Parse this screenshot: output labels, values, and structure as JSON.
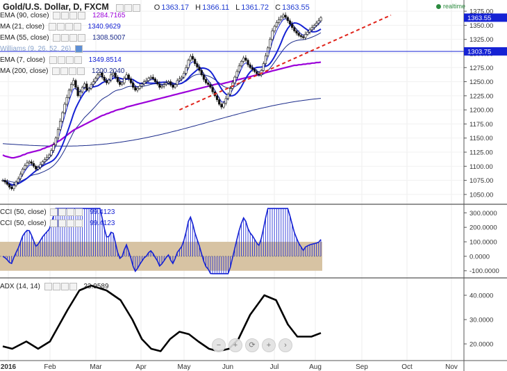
{
  "header": {
    "symbol_title": "Gold/U.S. Dollar, D, FXCM",
    "ohlc": [
      {
        "key": "O",
        "value": "1363.17"
      },
      {
        "key": "H",
        "value": "1366.11"
      },
      {
        "key": "L",
        "value": "1361.72"
      },
      {
        "key": "C",
        "value": "1363.55"
      }
    ],
    "realtime_label": "realtime"
  },
  "indicators": [
    {
      "label": "EMA (90, close)",
      "value": "1284.7165",
      "color": "#9b00d9"
    },
    {
      "label": "MA (21, close)",
      "value": "1340.9629",
      "color": "#1522d4"
    },
    {
      "label": "EMA (55, close)",
      "value": "1308.5007",
      "color": "#1a2a8a"
    },
    {
      "label": "Williams (9, 26, 52, 26)",
      "value": "",
      "color": "#8aa4cc"
    },
    {
      "label": "EMA (7, close)",
      "value": "1349.8514",
      "color": "#1522d4"
    },
    {
      "label": "MA (200, close)",
      "value": "1200.2040",
      "color": "#1a2a8a"
    }
  ],
  "cci_panel": [
    {
      "label": "CCI (50, close)",
      "value": "99.4123",
      "color": "#1522d4"
    },
    {
      "label": "CCI (50, close)",
      "value": "99.4123",
      "color": "#1522d4"
    }
  ],
  "adx_panel": {
    "label": "ADX (14, 14)",
    "value": "23.9589",
    "color": "#000000"
  },
  "price_axis": {
    "ticks": [
      "1375.00",
      "1350.00",
      "1325.00",
      "1300.00",
      "1275.00",
      "1250.00",
      "1225.00",
      "1200.00",
      "1175.00",
      "1150.00",
      "1125.00",
      "1100.00",
      "1075.00",
      "1050.00"
    ],
    "last_price": "1363.55",
    "level_price": "1303.75",
    "last_price_color": "#1522d4",
    "level_price_color": "#1522d4"
  },
  "cci_axis": {
    "ticks": [
      "300.0000",
      "200.0000",
      "100.0000",
      "0.0000",
      "-100.0000"
    ]
  },
  "adx_axis": {
    "ticks": [
      "40.0000",
      "30.0000",
      "20.0000"
    ]
  },
  "time_axis": {
    "ticks": [
      "2016",
      "Feb",
      "Mar",
      "Apr",
      "May",
      "Jun",
      "Jul",
      "Aug",
      "Sep",
      "Oct",
      "Nov"
    ]
  },
  "zoom_tools": [
    "zoom-out",
    "zoom-in",
    "reset",
    "add",
    "forward"
  ],
  "chart_data": {
    "type": "line",
    "title": "Gold/U.S. Dollar, D, FXCM",
    "price_range": [
      1040,
      1385
    ],
    "cci_range": [
      -130,
      340
    ],
    "adx_range": [
      14,
      46
    ],
    "cci_band": [
      -100,
      100
    ],
    "trendline": [
      {
        "day": 80,
        "price": 1200
      },
      {
        "day": 160,
        "price": 1368
      }
    ],
    "horizontal_level": 1303.75,
    "price_close": [
      1075,
      1072,
      1068,
      1063,
      1060,
      1066,
      1072,
      1078,
      1086,
      1095,
      1101,
      1106,
      1108,
      1105,
      1100,
      1095,
      1098,
      1103,
      1108,
      1112,
      1116,
      1120,
      1128,
      1138,
      1150,
      1165,
      1180,
      1195,
      1210,
      1222,
      1235,
      1245,
      1252,
      1240,
      1225,
      1232,
      1240,
      1246,
      1235,
      1238,
      1245,
      1250,
      1256,
      1262,
      1266,
      1258,
      1252,
      1248,
      1253,
      1262,
      1265,
      1258,
      1250,
      1245,
      1248,
      1256,
      1262,
      1255,
      1248,
      1240,
      1235,
      1238,
      1242,
      1246,
      1250,
      1252,
      1256,
      1258,
      1255,
      1250,
      1246,
      1240,
      1242,
      1245,
      1248,
      1250,
      1244,
      1240,
      1245,
      1252,
      1255,
      1258,
      1265,
      1275,
      1288,
      1295,
      1290,
      1282,
      1276,
      1270,
      1262,
      1254,
      1248,
      1245,
      1240,
      1232,
      1225,
      1218,
      1210,
      1205,
      1212,
      1220,
      1228,
      1238,
      1248,
      1258,
      1268,
      1278,
      1286,
      1292,
      1288,
      1280,
      1275,
      1272,
      1268,
      1264,
      1262,
      1270,
      1282,
      1296,
      1310,
      1325,
      1340,
      1348,
      1355,
      1360,
      1365,
      1368,
      1364,
      1358,
      1352,
      1346,
      1340,
      1336,
      1332,
      1330,
      1328,
      1334,
      1338,
      1342,
      1346,
      1350,
      1354,
      1358,
      1363.55
    ],
    "ema90": [
      1120,
      1118,
      1117,
      1116,
      1115,
      1115,
      1116,
      1117,
      1118,
      1120,
      1121,
      1123,
      1124,
      1125,
      1126,
      1127,
      1128,
      1129,
      1131,
      1132,
      1134,
      1135,
      1137,
      1139,
      1141,
      1144,
      1146,
      1149,
      1152,
      1155,
      1158,
      1161,
      1164,
      1166,
      1168,
      1170,
      1172,
      1174,
      1176,
      1178,
      1180,
      1182,
      1184,
      1186,
      1188,
      1190,
      1191,
      1193,
      1194,
      1196,
      1197,
      1199,
      1200,
      1201,
      1202,
      1203,
      1205,
      1206,
      1207,
      1208,
      1209,
      1210,
      1211,
      1212,
      1213,
      1214,
      1215,
      1216,
      1217,
      1218,
      1219,
      1220,
      1221,
      1222,
      1223,
      1224,
      1225,
      1226,
      1227,
      1228,
      1229,
      1230,
      1231,
      1232,
      1233,
      1234,
      1235,
      1236,
      1237,
      1238,
      1239,
      1240,
      1241,
      1242,
      1243,
      1244,
      1245,
      1246,
      1246,
      1246,
      1247,
      1248,
      1249,
      1250,
      1251,
      1252,
      1253,
      1254,
      1255,
      1256,
      1257,
      1258,
      1259,
      1260,
      1261,
      1262,
      1263,
      1264,
      1265,
      1266,
      1267,
      1268,
      1269,
      1270,
      1271,
      1272,
      1273,
      1274,
      1275,
      1276,
      1277,
      1278,
      1279,
      1279,
      1280,
      1280,
      1281,
      1281,
      1282,
      1282,
      1283,
      1283,
      1284,
      1284,
      1284.7
    ]
  }
}
